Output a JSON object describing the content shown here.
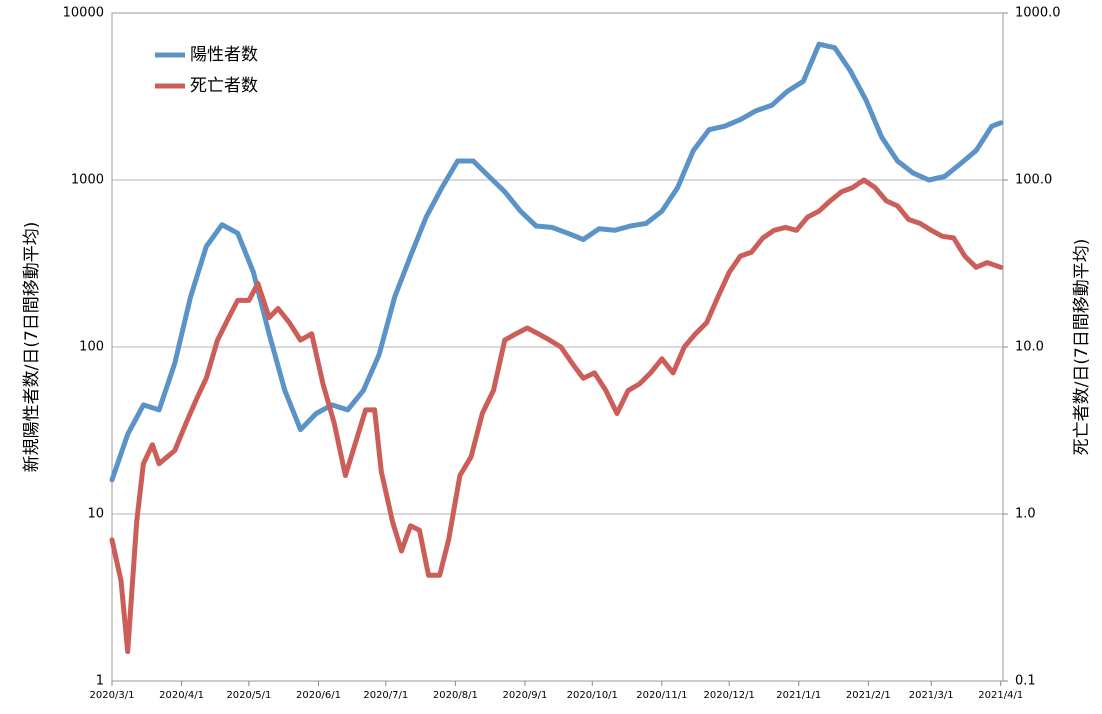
{
  "chart_data": {
    "type": "line",
    "log_scale": true,
    "grid": true,
    "legend_position": "upper-left",
    "y_label": "新規陽性者数/日(7日間移動平均)",
    "y2_label": "死亡者数/日(7日間移動平均)",
    "xlim": [
      "2020/3/1",
      "2021/4/2"
    ],
    "xticks": [
      "2020/3/1",
      "2020/4/1",
      "2020/5/1",
      "2020/6/1",
      "2020/7/1",
      "2020/8/1",
      "2020/9/1",
      "2020/10/1",
      "2020/11/1",
      "2020/12/1",
      "2021/1/1",
      "2021/2/1",
      "2021/3/1",
      "2021/4/1"
    ],
    "ylim": [
      1,
      10000
    ],
    "yticks": [
      1,
      10,
      100,
      1000,
      10000
    ],
    "y2lim": [
      0.1,
      1000
    ],
    "y2ticks": [
      0.1,
      {
        "value": 1,
        "label": "1.0"
      },
      {
        "value": 10,
        "label": "10.0"
      },
      {
        "value": 100,
        "label": "100.0"
      },
      {
        "value": 1000,
        "label": "1000.0"
      }
    ],
    "series": [
      {
        "name": "陽性者数",
        "color": "#5b93c8",
        "axis": "y",
        "x": [
          "2020/3/1",
          "2020/3/8",
          "2020/3/15",
          "2020/3/22",
          "2020/3/29",
          "2020/4/5",
          "2020/4/12",
          "2020/4/19",
          "2020/4/26",
          "2020/5/3",
          "2020/5/10",
          "2020/5/17",
          "2020/5/24",
          "2020/5/31",
          "2020/6/7",
          "2020/6/14",
          "2020/6/21",
          "2020/6/28",
          "2020/7/5",
          "2020/7/12",
          "2020/7/19",
          "2020/7/26",
          "2020/8/2",
          "2020/8/9",
          "2020/8/16",
          "2020/8/23",
          "2020/8/30",
          "2020/9/6",
          "2020/9/13",
          "2020/9/20",
          "2020/9/27",
          "2020/10/4",
          "2020/10/11",
          "2020/10/18",
          "2020/10/25",
          "2020/11/1",
          "2020/11/8",
          "2020/11/15",
          "2020/11/22",
          "2020/11/29",
          "2020/12/6",
          "2020/12/13",
          "2020/12/20",
          "2020/12/27",
          "2021/1/3",
          "2021/1/10",
          "2021/1/17",
          "2021/1/24",
          "2021/1/31",
          "2021/2/7",
          "2021/2/14",
          "2021/2/21",
          "2021/2/28",
          "2021/3/7",
          "2021/3/14",
          "2021/3/21",
          "2021/3/28",
          "2021/4/1"
        ],
        "values": [
          16,
          30,
          45,
          42,
          80,
          200,
          400,
          540,
          480,
          280,
          120,
          55,
          32,
          40,
          45,
          42,
          55,
          90,
          200,
          350,
          600,
          900,
          1300,
          1300,
          1050,
          850,
          650,
          530,
          520,
          480,
          440,
          510,
          500,
          530,
          550,
          650,
          900,
          1500,
          2000,
          2100,
          2300,
          2600,
          2800,
          3400,
          3900,
          6500,
          6200,
          4500,
          3000,
          1800,
          1300,
          1100,
          1000,
          1050,
          1250,
          1500,
          2100,
          2200
        ]
      },
      {
        "name": "死亡者数",
        "color": "#cc5e5a",
        "axis": "y2",
        "x": [
          "2020/3/1",
          "2020/3/5",
          "2020/3/8",
          "2020/3/12",
          "2020/3/15",
          "2020/3/19",
          "2020/3/22",
          "2020/3/29",
          "2020/4/3",
          "2020/4/8",
          "2020/4/12",
          "2020/4/17",
          "2020/4/22",
          "2020/4/26",
          "2020/5/1",
          "2020/5/5",
          "2020/5/10",
          "2020/5/14",
          "2020/5/19",
          "2020/5/24",
          "2020/5/29",
          "2020/6/3",
          "2020/6/8",
          "2020/6/13",
          "2020/6/18",
          "2020/6/22",
          "2020/6/26",
          "2020/6/29",
          "2020/7/4",
          "2020/7/8",
          "2020/7/12",
          "2020/7/16",
          "2020/7/20",
          "2020/7/25",
          "2020/7/29",
          "2020/8/3",
          "2020/8/8",
          "2020/8/13",
          "2020/8/18",
          "2020/8/23",
          "2020/8/28",
          "2020/9/2",
          "2020/9/7",
          "2020/9/12",
          "2020/9/17",
          "2020/9/22",
          "2020/9/27",
          "2020/10/2",
          "2020/10/7",
          "2020/10/12",
          "2020/10/17",
          "2020/10/22",
          "2020/10/27",
          "2020/11/1",
          "2020/11/6",
          "2020/11/11",
          "2020/11/16",
          "2020/11/21",
          "2020/11/26",
          "2020/12/1",
          "2020/12/6",
          "2020/12/11",
          "2020/12/16",
          "2020/12/21",
          "2020/12/26",
          "2020/12/31",
          "2021/1/5",
          "2021/1/10",
          "2021/1/15",
          "2021/1/20",
          "2021/1/25",
          "2021/1/30",
          "2021/2/4",
          "2021/2/9",
          "2021/2/14",
          "2021/2/19",
          "2021/2/24",
          "2021/3/1",
          "2021/3/6",
          "2021/3/11",
          "2021/3/16",
          "2021/3/21",
          "2021/3/26",
          "2021/4/1"
        ],
        "values": [
          0.7,
          0.4,
          0.15,
          0.9,
          2.0,
          2.6,
          2.0,
          2.4,
          3.5,
          5.0,
          6.5,
          11,
          15,
          19,
          19,
          24,
          15,
          17,
          14,
          11,
          12,
          6,
          3.5,
          1.7,
          2.8,
          4.2,
          4.2,
          1.8,
          0.9,
          0.6,
          0.85,
          0.8,
          0.43,
          0.43,
          0.7,
          1.7,
          2.2,
          4,
          5.5,
          11,
          12,
          13,
          12,
          11,
          10,
          8,
          6.5,
          7,
          5.5,
          4,
          5.5,
          6,
          7,
          8.5,
          7,
          10,
          12,
          14,
          20,
          28,
          35,
          37,
          45,
          50,
          52,
          50,
          60,
          65,
          75,
          85,
          90,
          100,
          90,
          75,
          70,
          58,
          55,
          50,
          46,
          45,
          35,
          30,
          32,
          30
        ]
      }
    ]
  }
}
